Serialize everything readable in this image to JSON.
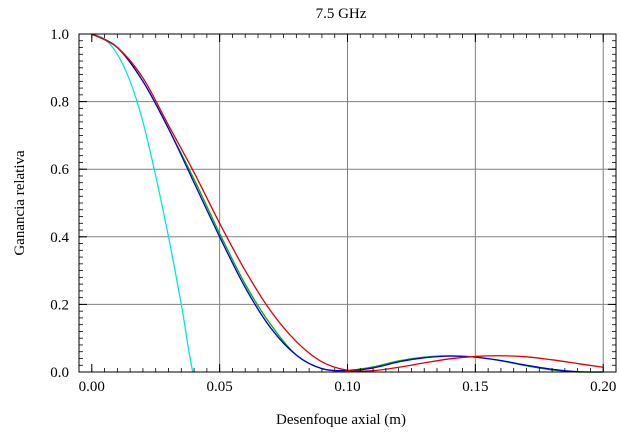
{
  "chart_data": {
    "type": "line",
    "title": "7.5 GHz",
    "xlabel": "Desenfoque axial (m)",
    "ylabel": "Ganancia relativa",
    "xlim": [
      -0.005,
      0.205
    ],
    "ylim": [
      0,
      1.0
    ],
    "x_ticks": [
      0.0,
      0.05,
      0.1,
      0.15,
      0.2
    ],
    "x_tick_labels": [
      "0.00",
      "0.05",
      "0.10",
      "0.15",
      "0.20"
    ],
    "y_ticks": [
      0.0,
      0.2,
      0.4,
      0.6,
      0.8,
      1.0
    ],
    "y_tick_labels": [
      "0.0",
      "0.2",
      "0.4",
      "0.6",
      "0.8",
      "1.0"
    ],
    "grid": true,
    "series": [
      {
        "color": "#00e5e5",
        "points": [
          [
            0.0,
            1.0
          ],
          [
            0.005,
            0.985
          ],
          [
            0.01,
            0.94
          ],
          [
            0.015,
            0.86
          ],
          [
            0.02,
            0.74
          ],
          [
            0.025,
            0.58
          ],
          [
            0.03,
            0.4
          ],
          [
            0.035,
            0.2
          ],
          [
            0.038,
            0.06
          ],
          [
            0.0395,
            0.0
          ]
        ]
      },
      {
        "color": "#00b000",
        "points": [
          [
            0.0,
            1.0
          ],
          [
            0.01,
            0.96
          ],
          [
            0.02,
            0.86
          ],
          [
            0.03,
            0.72
          ],
          [
            0.04,
            0.57
          ],
          [
            0.05,
            0.41
          ],
          [
            0.06,
            0.26
          ],
          [
            0.07,
            0.14
          ],
          [
            0.08,
            0.05
          ],
          [
            0.09,
            0.01
          ],
          [
            0.1,
            0.005
          ],
          [
            0.11,
            0.015
          ],
          [
            0.12,
            0.033
          ],
          [
            0.13,
            0.044
          ],
          [
            0.14,
            0.048
          ],
          [
            0.15,
            0.044
          ],
          [
            0.16,
            0.033
          ],
          [
            0.17,
            0.018
          ],
          [
            0.18,
            0.006
          ],
          [
            0.19,
            0.0
          ],
          [
            0.2,
            0.0
          ]
        ]
      },
      {
        "color": "#0000e0",
        "points": [
          [
            0.0,
            1.0
          ],
          [
            0.01,
            0.96
          ],
          [
            0.02,
            0.86
          ],
          [
            0.03,
            0.72
          ],
          [
            0.04,
            0.56
          ],
          [
            0.05,
            0.4
          ],
          [
            0.06,
            0.25
          ],
          [
            0.07,
            0.13
          ],
          [
            0.08,
            0.05
          ],
          [
            0.09,
            0.01
          ],
          [
            0.1,
            0.004
          ],
          [
            0.11,
            0.012
          ],
          [
            0.12,
            0.03
          ],
          [
            0.13,
            0.042
          ],
          [
            0.14,
            0.047
          ],
          [
            0.15,
            0.044
          ],
          [
            0.16,
            0.034
          ],
          [
            0.17,
            0.02
          ],
          [
            0.18,
            0.008
          ],
          [
            0.19,
            0.001
          ],
          [
            0.2,
            0.0
          ]
        ]
      },
      {
        "color": "#e00000",
        "points": [
          [
            0.0,
            1.0
          ],
          [
            0.01,
            0.96
          ],
          [
            0.02,
            0.87
          ],
          [
            0.03,
            0.73
          ],
          [
            0.04,
            0.59
          ],
          [
            0.05,
            0.44
          ],
          [
            0.06,
            0.3
          ],
          [
            0.07,
            0.18
          ],
          [
            0.08,
            0.09
          ],
          [
            0.09,
            0.03
          ],
          [
            0.1,
            0.005
          ],
          [
            0.11,
            0.004
          ],
          [
            0.12,
            0.014
          ],
          [
            0.13,
            0.027
          ],
          [
            0.14,
            0.039
          ],
          [
            0.15,
            0.046
          ],
          [
            0.16,
            0.048
          ],
          [
            0.17,
            0.045
          ],
          [
            0.18,
            0.036
          ],
          [
            0.19,
            0.025
          ],
          [
            0.2,
            0.014
          ]
        ]
      }
    ]
  }
}
